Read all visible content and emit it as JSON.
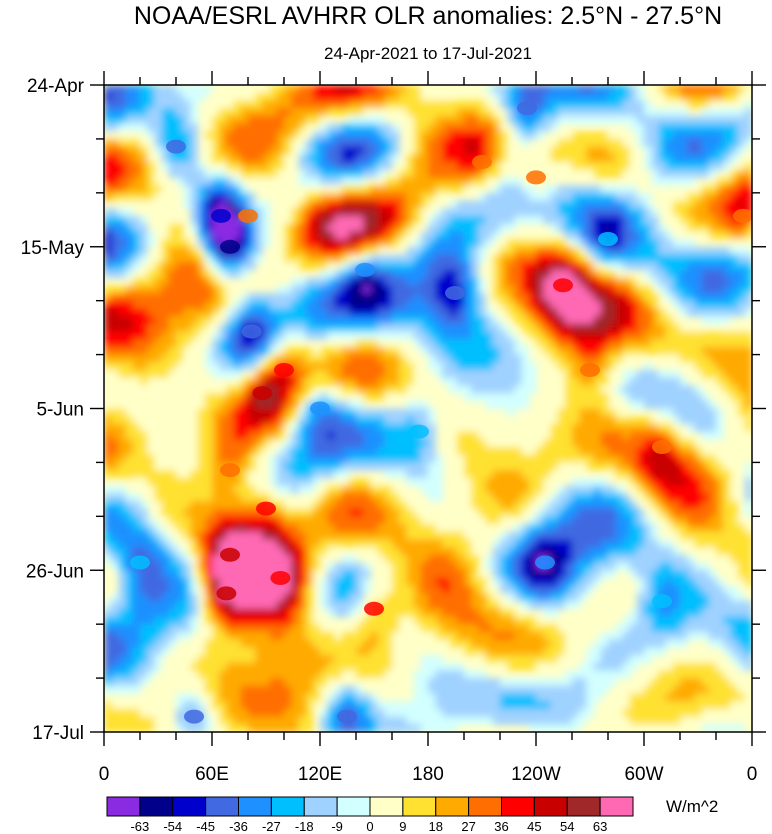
{
  "chart_data": {
    "type": "heatmap",
    "title": "NOAA/ESRL AVHRR OLR anomalies: 2.5°N - 27.5°N",
    "subtitle": "24-Apr-2021 to 17-Jul-2021",
    "x_ticks": [
      "0",
      "60E",
      "120E",
      "180",
      "120W",
      "60W",
      "0"
    ],
    "y_ticks": [
      "24-Apr",
      "15-May",
      "5-Jun",
      "26-Jun",
      "17-Jul"
    ],
    "xlim": [
      0,
      360
    ],
    "ylim_days": [
      0,
      84
    ],
    "colorbar": {
      "levels": [
        "-63",
        "-54",
        "-45",
        "-36",
        "-27",
        "-18",
        "-9",
        "0",
        "9",
        "18",
        "27",
        "36",
        "45",
        "54",
        "63"
      ],
      "colors": [
        "#8a2be2",
        "#00008b",
        "#0000cd",
        "#4169e1",
        "#1e90ff",
        "#00bfff",
        "#a0d2ff",
        "#d2ffff",
        "#ffffc8",
        "#ffe132",
        "#ffaa00",
        "#ff6e00",
        "#ff0000",
        "#c80000",
        "#a02828",
        "#ff69b4"
      ],
      "units": "W/m^2"
    },
    "features": [
      {
        "x": 70,
        "day": 21,
        "value": -63
      },
      {
        "x": 65,
        "day": 17,
        "value": -54
      },
      {
        "x": 40,
        "day": 8,
        "value": -45
      },
      {
        "x": 82,
        "day": 32,
        "value": -45
      },
      {
        "x": 195,
        "day": 27,
        "value": -45
      },
      {
        "x": 235,
        "day": 3,
        "value": -45
      },
      {
        "x": 135,
        "day": 82,
        "value": -45
      },
      {
        "x": 50,
        "day": 82,
        "value": -40
      },
      {
        "x": 145,
        "day": 24,
        "value": -36
      },
      {
        "x": 120,
        "day": 42,
        "value": -30
      },
      {
        "x": 245,
        "day": 62,
        "value": -30
      },
      {
        "x": 310,
        "day": 67,
        "value": -27
      },
      {
        "x": 20,
        "day": 62,
        "value": -27
      },
      {
        "x": 175,
        "day": 45,
        "value": -25
      },
      {
        "x": 280,
        "day": 20,
        "value": -25
      },
      {
        "x": 88,
        "day": 40,
        "value": 45
      },
      {
        "x": 100,
        "day": 37,
        "value": 40
      },
      {
        "x": 70,
        "day": 61,
        "value": 45
      },
      {
        "x": 68,
        "day": 66,
        "value": 45
      },
      {
        "x": 98,
        "day": 64,
        "value": 36
      },
      {
        "x": 90,
        "day": 55,
        "value": 36
      },
      {
        "x": 150,
        "day": 68,
        "value": 36
      },
      {
        "x": 70,
        "day": 50,
        "value": 30
      },
      {
        "x": 255,
        "day": 26,
        "value": 36
      },
      {
        "x": 210,
        "day": 10,
        "value": 27
      },
      {
        "x": 270,
        "day": 37,
        "value": 27
      },
      {
        "x": 240,
        "day": 12,
        "value": 27
      },
      {
        "x": 80,
        "day": 17,
        "value": 27
      },
      {
        "x": 310,
        "day": 47,
        "value": 27
      },
      {
        "x": 355,
        "day": 17,
        "value": 27
      }
    ]
  }
}
